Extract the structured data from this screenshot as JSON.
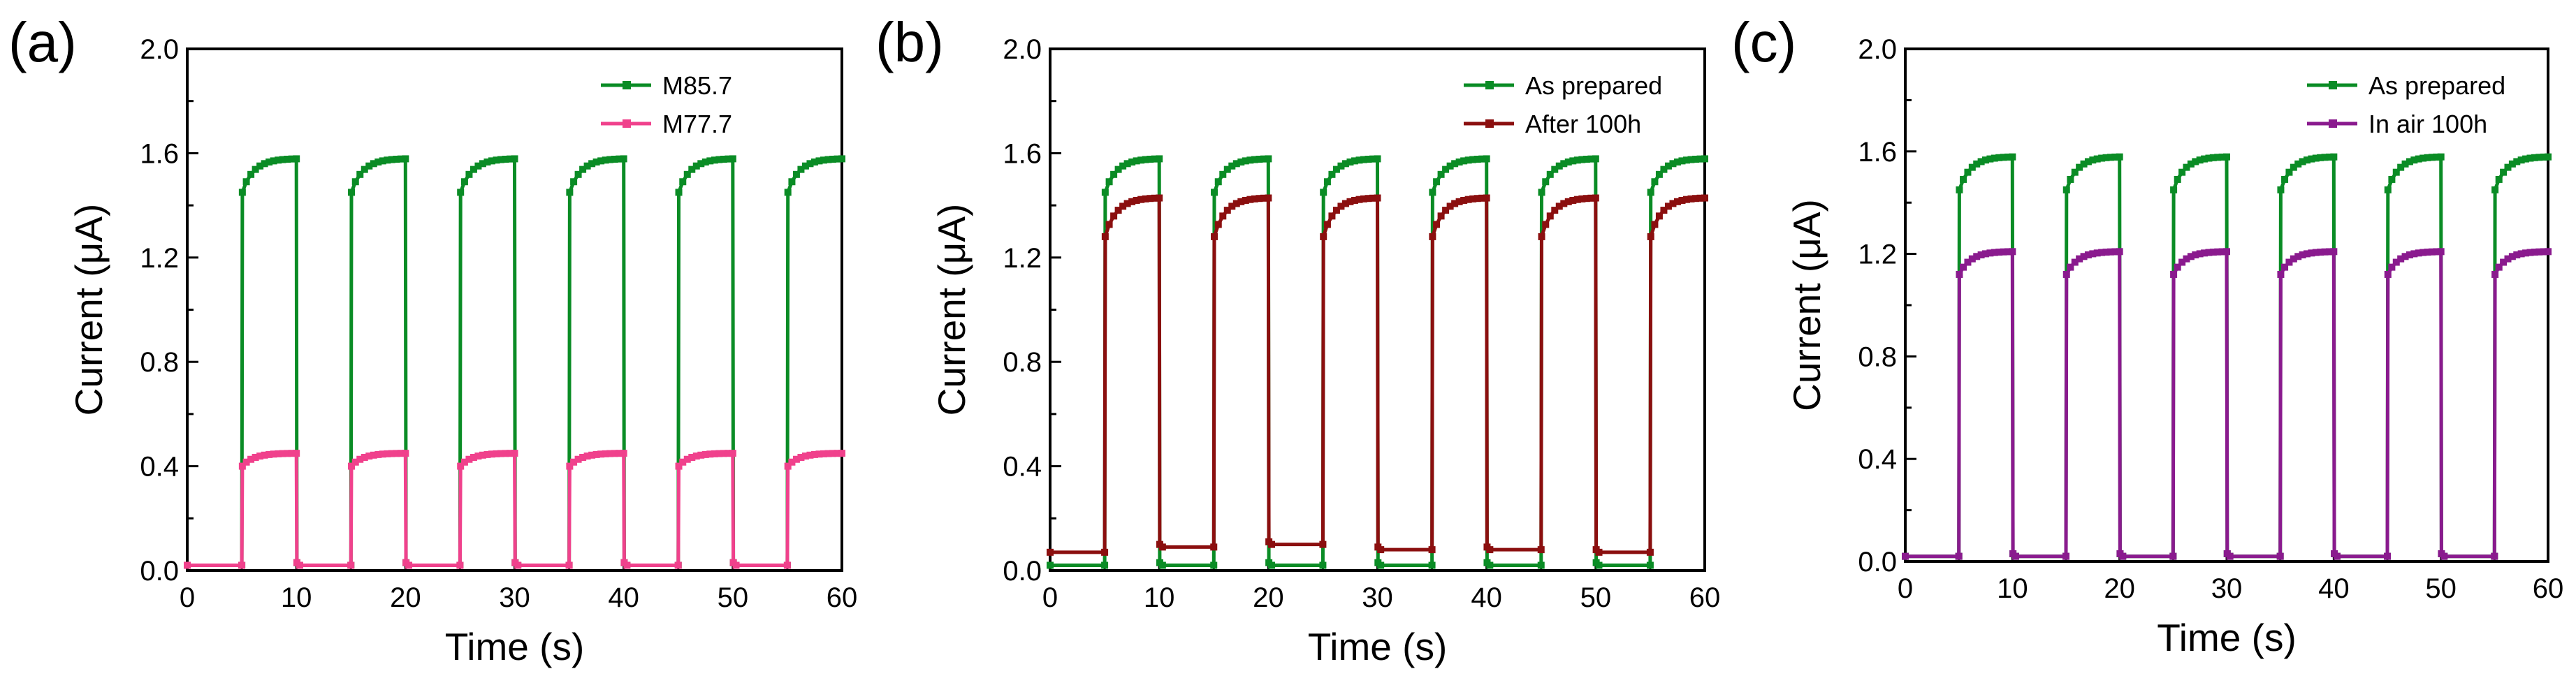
{
  "colors": {
    "green": "#0a8c25",
    "pink": "#f0418c",
    "darkred": "#8b0f0f",
    "purple": "#8a1a8e",
    "axis": "#000000"
  },
  "chart_data": [
    {
      "type": "line",
      "panel_label": "(a)",
      "xlabel": "Time (s)",
      "ylabel": "Current (μA)",
      "xlim": [
        0,
        60
      ],
      "ylim": [
        0,
        2.0
      ],
      "xticks": [
        "0",
        "10",
        "20",
        "30",
        "40",
        "50",
        "60"
      ],
      "yticks": [
        "0.0",
        "0.4",
        "0.8",
        "1.2",
        "1.6",
        "2.0"
      ],
      "legend_position": "top-right",
      "pulse_on_times": [
        5,
        15,
        25,
        35,
        45,
        55
      ],
      "pulse_off_times": [
        10,
        20,
        30,
        40,
        50,
        60
      ],
      "series": [
        {
          "name": "M85.7",
          "color": "#0a8c25",
          "baseline": 0.02,
          "step": 1.45,
          "plateau": 1.58
        },
        {
          "name": "M77.7",
          "color": "#f0418c",
          "baseline": 0.02,
          "step": 0.4,
          "plateau": 0.45
        }
      ]
    },
    {
      "type": "line",
      "panel_label": "(b)",
      "xlabel": "Time (s)",
      "ylabel": "Current (μA)",
      "xlim": [
        0,
        60
      ],
      "ylim": [
        0,
        2.0
      ],
      "xticks": [
        "0",
        "10",
        "20",
        "30",
        "40",
        "50",
        "60"
      ],
      "yticks": [
        "0.0",
        "0.4",
        "0.8",
        "1.2",
        "1.6",
        "2.0"
      ],
      "legend_position": "top-right",
      "pulse_on_times": [
        5,
        15,
        25,
        35,
        45,
        55
      ],
      "pulse_off_times": [
        10,
        20,
        30,
        40,
        50,
        60
      ],
      "series": [
        {
          "name": "As prepared",
          "color": "#0a8c25",
          "baseline": 0.02,
          "step": 1.45,
          "plateau": 1.58
        },
        {
          "name": "After 100h",
          "color": "#8b0f0f",
          "baselines": [
            0.07,
            0.09,
            0.1,
            0.08,
            0.08,
            0.07
          ],
          "step": 1.28,
          "plateau": 1.43
        }
      ]
    },
    {
      "type": "line",
      "panel_label": "(c)",
      "xlabel": "Time (s)",
      "ylabel": "Current (μA)",
      "xlim": [
        0,
        60
      ],
      "ylim": [
        0,
        2.0
      ],
      "xticks": [
        "0",
        "10",
        "20",
        "30",
        "40",
        "50",
        "60"
      ],
      "yticks": [
        "0.0",
        "0.4",
        "0.8",
        "1.2",
        "1.6",
        "2.0"
      ],
      "legend_position": "top-right",
      "pulse_on_times": [
        5,
        15,
        25,
        35,
        45,
        55
      ],
      "pulse_off_times": [
        10,
        20,
        30,
        40,
        50,
        60
      ],
      "series": [
        {
          "name": "As prepared",
          "color": "#0a8c25",
          "baseline": 0.02,
          "step": 1.45,
          "plateau": 1.58
        },
        {
          "name": "In air 100h",
          "color": "#8a1a8e",
          "baseline": 0.02,
          "step": 1.12,
          "plateau": 1.21
        }
      ]
    }
  ]
}
